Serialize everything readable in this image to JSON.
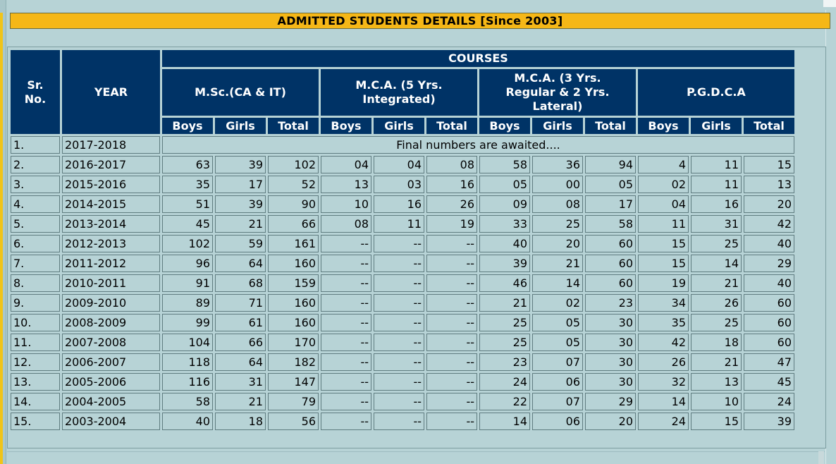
{
  "title": "ADMITTED STUDENTS DETAILS [Since 2003]",
  "headers": {
    "sr_no": "Sr. No.",
    "year": "YEAR",
    "courses": "COURSES",
    "course_names": [
      "M.Sc.(CA & IT)",
      "M.C.A. (5 Yrs. Integrated)",
      "M.C.A. (3 Yrs. Regular & 2 Yrs. Lateral)",
      "P.G.D.C.A"
    ],
    "boys": "Boys",
    "girls": "Girls",
    "total": "Total"
  },
  "first_row": {
    "sr": "1.",
    "year": "2017-2018",
    "message": "Final numbers are awaited...."
  },
  "rows": [
    [
      "2.",
      "2016-2017",
      "63",
      "39",
      "102",
      "04",
      "04",
      "08",
      "58",
      "36",
      "94",
      "4",
      "11",
      "15"
    ],
    [
      "3.",
      "2015-2016",
      "35",
      "17",
      "52",
      "13",
      "03",
      "16",
      "05",
      "00",
      "05",
      "02",
      "11",
      "13"
    ],
    [
      "4.",
      "2014-2015",
      "51",
      "39",
      "90",
      "10",
      "16",
      "26",
      "09",
      "08",
      "17",
      "04",
      "16",
      "20"
    ],
    [
      "5.",
      "2013-2014",
      "45",
      "21",
      "66",
      "08",
      "11",
      "19",
      "33",
      "25",
      "58",
      "11",
      "31",
      "42"
    ],
    [
      "6.",
      "2012-2013",
      "102",
      "59",
      "161",
      "--",
      "--",
      "--",
      "40",
      "20",
      "60",
      "15",
      "25",
      "40"
    ],
    [
      "7.",
      "2011-2012",
      "96",
      "64",
      "160",
      "--",
      "--",
      "--",
      "39",
      "21",
      "60",
      "15",
      "14",
      "29"
    ],
    [
      "8.",
      "2010-2011",
      "91",
      "68",
      "159",
      "--",
      "--",
      "--",
      "46",
      "14",
      "60",
      "19",
      "21",
      "40"
    ],
    [
      "9.",
      "2009-2010",
      "89",
      "71",
      "160",
      "--",
      "--",
      "--",
      "21",
      "02",
      "23",
      "34",
      "26",
      "60"
    ],
    [
      "10.",
      "2008-2009",
      "99",
      "61",
      "160",
      "--",
      "--",
      "--",
      "25",
      "05",
      "30",
      "35",
      "25",
      "60"
    ],
    [
      "11.",
      "2007-2008",
      "104",
      "66",
      "170",
      "--",
      "--",
      "--",
      "25",
      "05",
      "30",
      "42",
      "18",
      "60"
    ],
    [
      "12.",
      "2006-2007",
      "118",
      "64",
      "182",
      "--",
      "--",
      "--",
      "23",
      "07",
      "30",
      "26",
      "21",
      "47"
    ],
    [
      "13.",
      "2005-2006",
      "116",
      "31",
      "147",
      "--",
      "--",
      "--",
      "24",
      "06",
      "30",
      "32",
      "13",
      "45"
    ],
    [
      "14.",
      "2004-2005",
      "58",
      "21",
      "79",
      "--",
      "--",
      "--",
      "22",
      "07",
      "29",
      "14",
      "10",
      "24"
    ],
    [
      "15.",
      "2003-2004",
      "40",
      "18",
      "56",
      "--",
      "--",
      "--",
      "14",
      "06",
      "20",
      "24",
      "15",
      "39"
    ]
  ],
  "colors": {
    "title_bg": "#f5b717",
    "header_bg": "#003366",
    "page_bg": "#b7d3d6"
  }
}
